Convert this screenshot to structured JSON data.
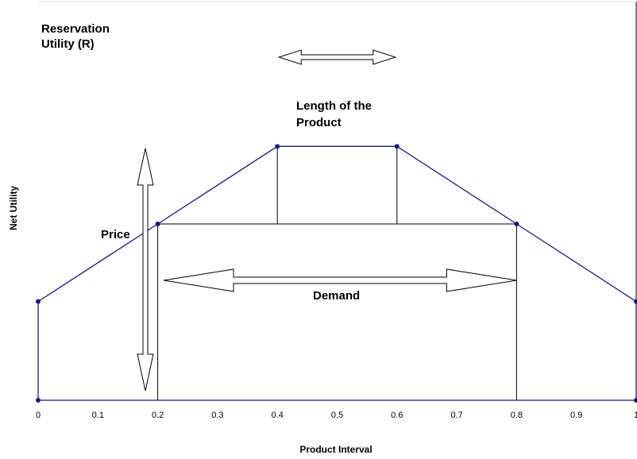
{
  "chart_data": {
    "type": "line",
    "title": "",
    "xlabel": "Product Interval",
    "ylabel": "Net Utility",
    "xlim": [
      0,
      1
    ],
    "ylim": [
      0,
      1
    ],
    "xticks": [
      0,
      0.1,
      0.2,
      0.3,
      0.4,
      0.5,
      0.6,
      0.7,
      0.8,
      0.9,
      1
    ],
    "xtick_labels": [
      "0",
      "0.1",
      "0.2",
      "0.3",
      "0.4",
      "0.5",
      "0.6",
      "0.7",
      "0.8",
      "0.9",
      "1"
    ],
    "grid": false,
    "colors": {
      "series": "#1a1a7a",
      "frame": "#000000"
    },
    "series": [
      {
        "x": [
          0,
          0.2,
          0.4,
          0.6,
          0.8,
          1
        ],
        "y": [
          0.56,
          1.0,
          1.44,
          1.44,
          1.0,
          0.56
        ]
      }
    ],
    "baseline_points": {
      "x": [
        0,
        1
      ],
      "y": [
        0,
        0
      ]
    },
    "price_level": 1.0,
    "demand_range": [
      0.2,
      0.8
    ],
    "annotations": {
      "reservation": "Reservation\nUtility (R)",
      "length": "Length of the\nProduct",
      "price": "Price",
      "demand": "Demand"
    }
  }
}
